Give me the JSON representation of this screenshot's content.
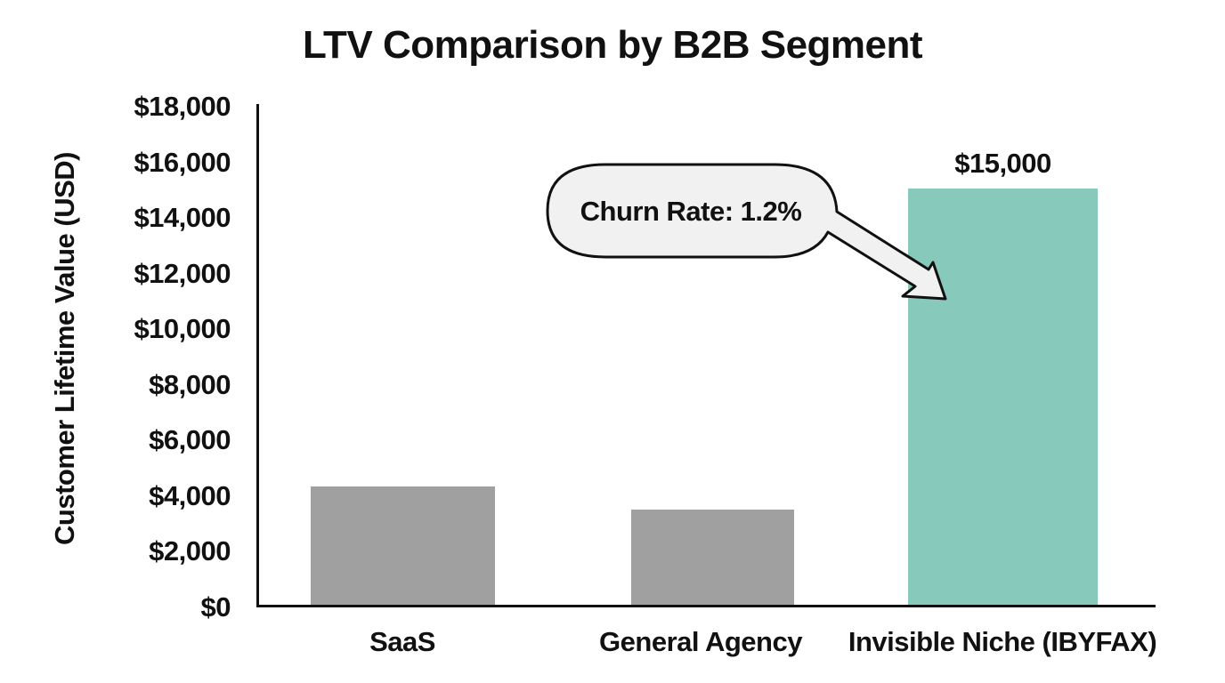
{
  "chart_data": {
    "type": "bar",
    "title": "LTV Comparison by B2B Segment",
    "xlabel": "",
    "ylabel": "Customer Lifetime Value (USD)",
    "ylim": [
      0,
      18000
    ],
    "yticks": [
      "$0",
      "$2,000",
      "$4,000",
      "$6,000",
      "$8,000",
      "$10,000",
      "$12,000",
      "$14,000",
      "$16,000",
      "$18,000"
    ],
    "categories": [
      "SaaS",
      "General Agency",
      "Invisible Niche (IBYFAX)"
    ],
    "values": [
      4300,
      3450,
      15000
    ],
    "colors": [
      "#a0a0a0",
      "#a0a0a0",
      "#87c9bb"
    ],
    "data_labels": [
      "",
      "",
      "$15,000"
    ],
    "annotations": [
      {
        "text": "Churn Rate: 1.2%",
        "target": "Invisible Niche (IBYFAX)",
        "style": "speech-bubble-arrow"
      }
    ],
    "grid": false,
    "legend": null
  }
}
